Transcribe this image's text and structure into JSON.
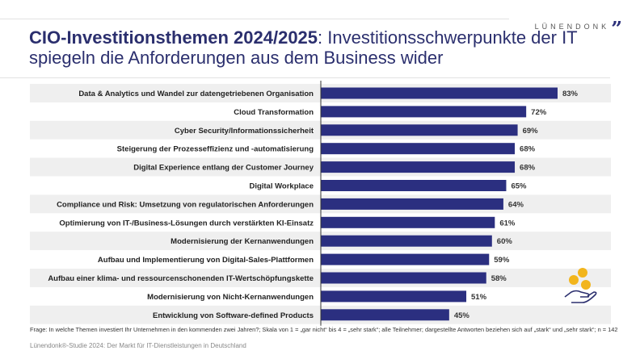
{
  "header": {
    "logo": "LÜNENDONK",
    "title_bold": "CIO-Investitionsthemen 2024/2025",
    "title_rest": ": Investitionsschwerpunkte der IT spiegeln die Anforderungen aus dem Business wider"
  },
  "chart_data": {
    "type": "bar",
    "orientation": "horizontal",
    "bar_color": "#2b2f80",
    "stripe_color": "#efefef",
    "categories": [
      "Data & Analytics und Wandel zur datengetriebenen Organisation",
      "Cloud Transformation",
      "Cyber Security/Informationssicherheit",
      "Steigerung der Prozesseffizienz und -automatisierung",
      "Digital Experience entlang der Customer Journey",
      "Digital Workplace",
      "Compliance und Risk: Umsetzung von regulatorischen Anforderungen",
      "Optimierung von IT-/Business-Lösungen durch verstärkten KI-Einsatz",
      "Modernisierung der Kernanwendungen",
      "Aufbau und Implementierung von Digital-Sales-Plattformen",
      "Aufbau einer klima- und ressourcenschonenden IT-Wertschöpfungskette",
      "Modernisierung von Nicht-Kernanwendungen",
      "Entwicklung von Software-defined Products"
    ],
    "values": [
      83,
      72,
      69,
      68,
      68,
      65,
      64,
      61,
      60,
      59,
      58,
      51,
      45
    ],
    "labels": [
      "83%",
      "72%",
      "69%",
      "68%",
      "68%",
      "65%",
      "64%",
      "61%",
      "60%",
      "59%",
      "58%",
      "51%",
      "45%"
    ],
    "unit": "%",
    "xlim": [
      0,
      100
    ]
  },
  "footer": {
    "note": "Frage: In welche Themen investiert Ihr Unternehmen in den kommenden zwei Jahren?; Skala von 1 = „gar nicht“ bis 4 = „sehr stark“; alle Teilnehmer; dargestellte Antworten beziehen sich auf „stark“ und „sehr stark“; n = 142",
    "source": "Lünendonk®-Studie 2024: Der Markt für IT-Dienstleistungen in Deutschland"
  },
  "icons": {
    "decoration": "hand-coins-icon"
  }
}
